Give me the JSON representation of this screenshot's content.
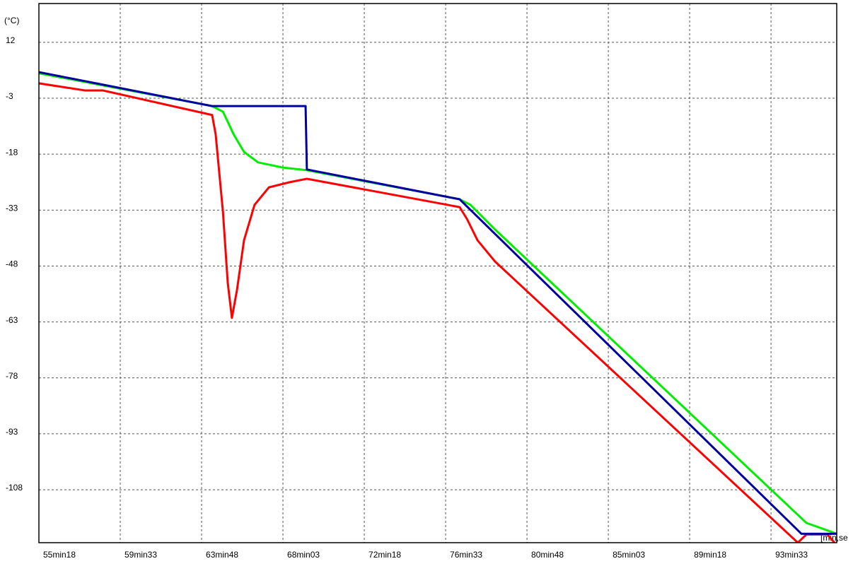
{
  "chart_data": {
    "type": "line",
    "y_label": "(°C)",
    "x_label": "[min,se",
    "xlim": [
      3318,
      5819
    ],
    "ylim": [
      -122.2,
      22.4
    ],
    "xticks": [
      {
        "value": 3318,
        "label": "55min18"
      },
      {
        "value": 3573,
        "label": "59min33"
      },
      {
        "value": 3828,
        "label": "63min48"
      },
      {
        "value": 4083,
        "label": "68min03"
      },
      {
        "value": 4338,
        "label": "72min18"
      },
      {
        "value": 4593,
        "label": "76min33"
      },
      {
        "value": 4848,
        "label": "80min48"
      },
      {
        "value": 5103,
        "label": "85min03"
      },
      {
        "value": 5358,
        "label": "89min18"
      },
      {
        "value": 5613,
        "label": "93min33"
      }
    ],
    "yticks": [
      12,
      -3,
      -18,
      -33,
      -48,
      -63,
      -78,
      -93,
      -108
    ],
    "grid": true,
    "series": [
      {
        "color": "#ff0000",
        "x": [
          3318,
          3462,
          3518,
          3861,
          3872,
          3895,
          3910,
          3923,
          3939,
          3961,
          3994,
          4039,
          4105,
          4158,
          4637,
          4660,
          4693,
          4748,
          5697,
          5724,
          5790,
          5812
        ],
        "values": [
          1.0,
          -0.9,
          -0.9,
          -7.5,
          -12.6,
          -33.5,
          -52.5,
          -61.9,
          -54.4,
          -41.1,
          -31.6,
          -26.9,
          -25.5,
          -24.6,
          -32.2,
          -35.4,
          -41.1,
          -46.8,
          -122.2,
          -120.0,
          -120.0,
          -122.2
        ]
      },
      {
        "color": "#00ee00",
        "x": [
          3318,
          3861,
          3895,
          3928,
          3961,
          4005,
          4083,
          4158,
          4637,
          4671,
          4748,
          5724,
          5819
        ],
        "values": [
          3.7,
          -5.1,
          -6.6,
          -12.6,
          -17.4,
          -20.2,
          -21.6,
          -22.3,
          -30.1,
          -31.6,
          -38.2,
          -116.9,
          -119.8
        ]
      },
      {
        "color": "#0000a0",
        "x": [
          3318,
          3861,
          4154,
          4158,
          4637,
          5708,
          5819
        ],
        "values": [
          4.0,
          -5.1,
          -5.1,
          -22.1,
          -30.1,
          -119.8,
          -119.8
        ]
      }
    ]
  }
}
